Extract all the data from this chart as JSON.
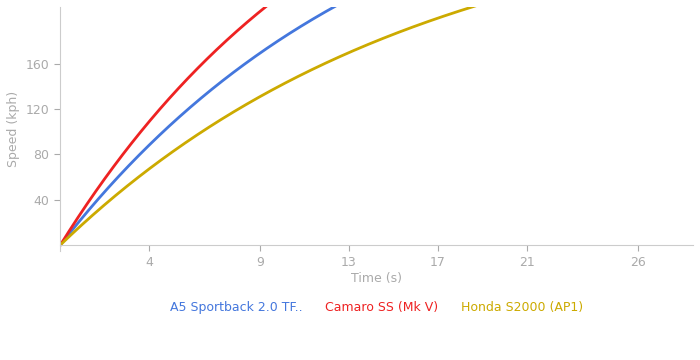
{
  "xlabel": "Time (s)",
  "ylabel": "Speed (kph)",
  "xlim": [
    0,
    28.5
  ],
  "ylim": [
    -5,
    210
  ],
  "yticks": [
    40,
    80,
    120,
    160
  ],
  "xticks": [
    4,
    9,
    13,
    17,
    21,
    26
  ],
  "background_color": "#ffffff",
  "series": [
    {
      "label": "A5 Sportback 2.0 TF..",
      "color": "#4477dd",
      "vmax": 370,
      "k": 0.068
    },
    {
      "label": "Camaro SS (Mk V)",
      "color": "#ee2222",
      "vmax": 420,
      "k": 0.075
    },
    {
      "label": "Honda S2000 (AP1)",
      "color": "#ccaa00",
      "vmax": 310,
      "k": 0.061
    }
  ],
  "legend_fontsize": 9,
  "axis_label_color": "#aaaaaa",
  "tick_color": "#aaaaaa",
  "spine_color": "#cccccc",
  "line_width": 2.0
}
